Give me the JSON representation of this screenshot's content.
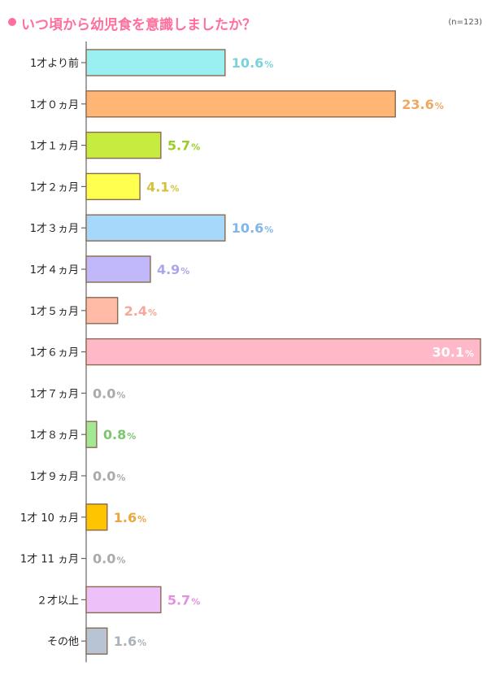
{
  "title": "いつ頃から幼児食を意識しましたか？",
  "sample_size": "(n=123)",
  "colors": {
    "title": "#ff6f9c",
    "axis": "#666666",
    "bar_outline": "#8a6a50"
  },
  "chart_data": {
    "type": "bar",
    "orientation": "horizontal",
    "title": "いつ頃から幼児食を意識しましたか？",
    "categories": [
      "1才より前",
      "1才０ヵ月",
      "1才１ヵ月",
      "1才２ヵ月",
      "1才３ヵ月",
      "1才４ヵ月",
      "1才５ヵ月",
      "1才６ヵ月",
      "1才７ヵ月",
      "1才８ヵ月",
      "1才９ヵ月",
      "1才 10 ヵ月",
      "1才 11 ヵ月",
      "２才以上",
      "その他"
    ],
    "values": [
      10.6,
      23.6,
      5.7,
      4.1,
      10.6,
      4.9,
      2.4,
      30.1,
      0.0,
      0.8,
      0.0,
      1.6,
      0.0,
      5.7,
      1.6
    ],
    "value_labels": [
      "10.6",
      "23.6",
      "5.7",
      "4.1",
      "10.6",
      "4.9",
      "2.4",
      "30.1",
      "0.0",
      "0.8",
      "0.0",
      "1.6",
      "0.0",
      "5.7",
      "1.6"
    ],
    "unit": "%",
    "bar_colors": [
      "#9af0f0",
      "#ffb675",
      "#c6ec3f",
      "#ffff50",
      "#a5d8fa",
      "#c0b8f8",
      "#ffbba6",
      "#ffb8c8",
      "#bbbbbb",
      "#a2e896",
      "#bbbbbb",
      "#ffc400",
      "#bbbbbb",
      "#eec0fa",
      "#b8c4d4"
    ],
    "label_colors": [
      "#7ad3dc",
      "#f0a860",
      "#9acd28",
      "#d4c23c",
      "#82b6e8",
      "#aba6ea",
      "#f5a898",
      "#ffffff",
      "#aaaaaa",
      "#7cc670",
      "#aaaaaa",
      "#eba640",
      "#aaaaaa",
      "#e490e0",
      "#aab2bc"
    ],
    "xlim": [
      0,
      30.1
    ],
    "grid": false,
    "legend": "none"
  }
}
